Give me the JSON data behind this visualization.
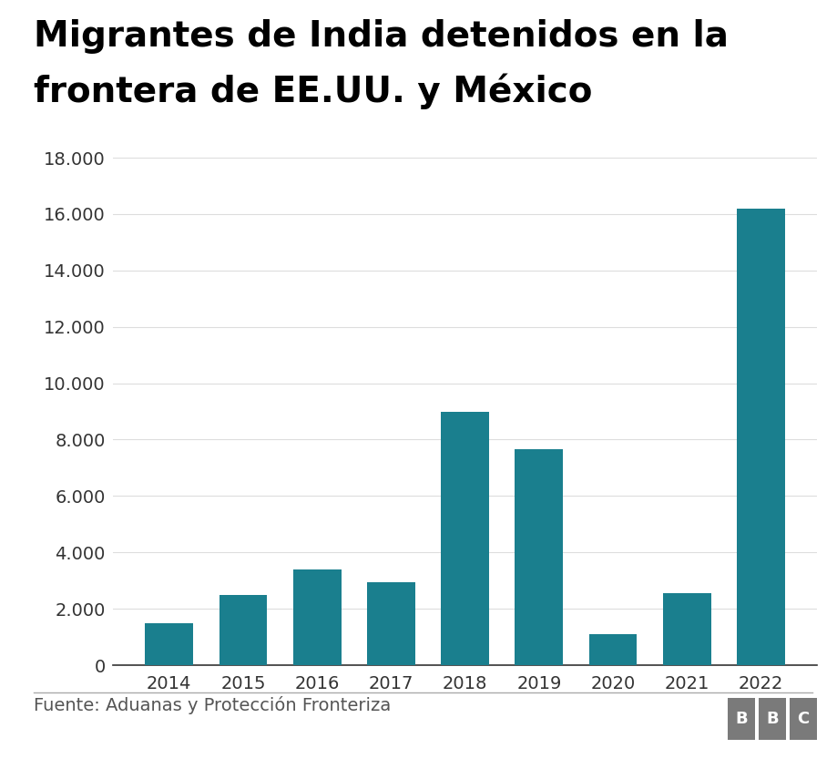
{
  "title_line1": "Migrantes de India detenidos en la",
  "title_line2": "frontera de EE.UU. y México",
  "years": [
    "2014",
    "2015",
    "2016",
    "2017",
    "2018",
    "2019",
    "2020",
    "2021",
    "2022"
  ],
  "values": [
    1500,
    2500,
    3400,
    2950,
    9000,
    7650,
    1100,
    2550,
    16200
  ],
  "bar_color": "#1a7f8e",
  "ylim": [
    0,
    18000
  ],
  "yticks": [
    0,
    2000,
    4000,
    6000,
    8000,
    10000,
    12000,
    14000,
    16000,
    18000
  ],
  "ytick_labels": [
    "0",
    "2.000",
    "4.000",
    "6.000",
    "8.000",
    "10.000",
    "12.000",
    "14.000",
    "16.000",
    "18.000"
  ],
  "source_text": "Fuente: Aduanas y Protección Fronteriza",
  "background_color": "#ffffff",
  "title_fontsize": 28,
  "tick_fontsize": 14,
  "source_fontsize": 14,
  "bar_width": 0.65,
  "footer_line_color": "#aaaaaa",
  "spine_color": "#333333",
  "grid_color": "#dddddd",
  "tick_color": "#333333",
  "bbc_bg_color": "#7a7a7a",
  "bbc_text_color": "#ffffff"
}
